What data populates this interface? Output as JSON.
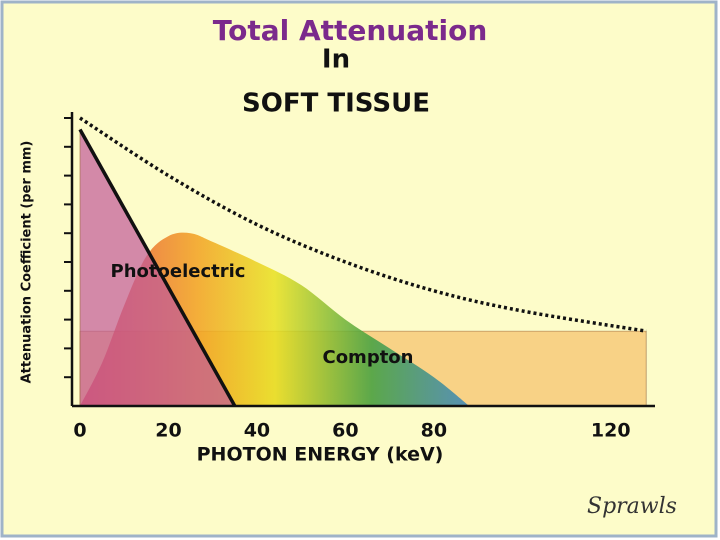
{
  "chart_data": {
    "type": "area",
    "title": "Total Attenuation",
    "subtitle": [
      "In",
      "SOFT TISSUE"
    ],
    "x_label": "PHOTON ENERGY (keV)",
    "y_label": "Attenuation Coefficient (per mm)",
    "credit": "Sprawls",
    "xlim": [
      0,
      130
    ],
    "xticks": [
      0,
      20,
      40,
      60,
      80,
      120
    ],
    "ylim": [
      0,
      10
    ],
    "yticks": [
      1,
      2,
      3,
      4,
      5,
      6,
      7,
      8,
      9,
      10
    ],
    "series": [
      {
        "x": [
          0,
          128
        ],
        "values": [
          2.6,
          2.6
        ],
        "color": "#f5c06a",
        "style": "area"
      },
      {
        "name": "Compton",
        "x": [
          0,
          5,
          10,
          15,
          20,
          25,
          30,
          40,
          50,
          60,
          70,
          80,
          88
        ],
        "values": [
          0,
          1.5,
          3.5,
          5.2,
          5.9,
          6.0,
          5.7,
          5.0,
          4.2,
          3.0,
          2.0,
          1.0,
          0
        ],
        "style": "area"
      },
      {
        "name": "Photoelectric",
        "x": [
          0,
          35
        ],
        "values": [
          9.6,
          0
        ],
        "color": "#c0589a",
        "style": "area"
      },
      {
        "x": [
          0,
          20,
          40,
          60,
          80,
          100,
          128
        ],
        "values": [
          10,
          8,
          6.3,
          5.0,
          4.0,
          3.3,
          2.6
        ],
        "color": "#111111",
        "style": "dotted"
      }
    ]
  }
}
